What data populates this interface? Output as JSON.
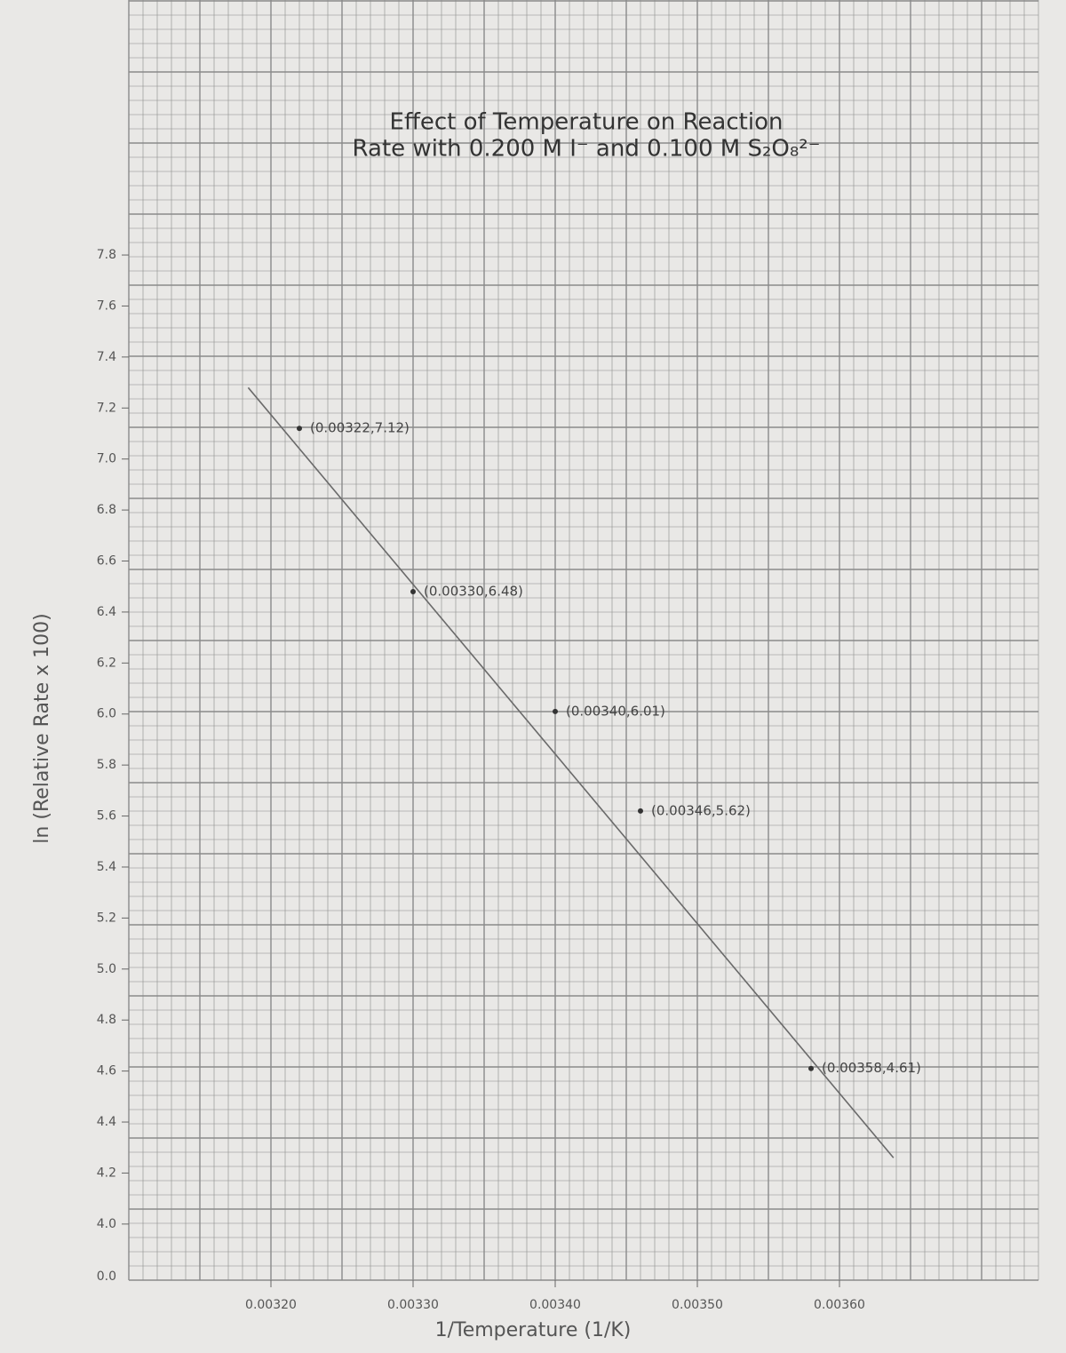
{
  "chart_data": {
    "type": "scatter",
    "title": [
      "Effect of Temperature on Reaction",
      "Rate with 0.200 M I⁻ and 0.100 M S₂O₈²⁻"
    ],
    "x_label": "1/Temperature (1/K)",
    "y_label": "ln (Relative Rate x 100)",
    "xlim": [
      0.0031,
      0.00374
    ],
    "ylim": [
      3.78,
      8.8
    ],
    "xticks": [
      {
        "value": 0.0032,
        "label": "0.00320"
      },
      {
        "value": 0.0033,
        "label": "0.00330"
      },
      {
        "value": 0.0034,
        "label": "0.00340"
      },
      {
        "value": 0.0035,
        "label": "0.00350"
      },
      {
        "value": 0.0036,
        "label": "0.00360"
      }
    ],
    "yticks": [
      {
        "value": 4.0,
        "label": "4.0"
      },
      4.2,
      4.4,
      4.6,
      4.8,
      {
        "value": 5.0,
        "label": "5.0"
      },
      5.2,
      5.4,
      5.6,
      5.8,
      {
        "value": 6.0,
        "label": "6.0"
      },
      6.2,
      6.4,
      6.6,
      6.8,
      {
        "value": 7.0,
        "label": "7.0"
      },
      7.2,
      7.4,
      7.6,
      7.8
    ],
    "y_break_label": "0.0",
    "series": [
      {
        "color": "#333333",
        "x": [
          0.00322,
          0.0033,
          0.0034,
          0.00346,
          0.00358
        ],
        "values": [
          7.12,
          6.48,
          6.01,
          5.62,
          4.61
        ],
        "value_labels": [
          "(0.00322,7.12)",
          "(0.00330,6.48)",
          "(0.00340,6.01)",
          "(0.00346,5.62)",
          "(0.00358,4.61)"
        ]
      }
    ],
    "trendline": {
      "x": [
        0.003184,
        0.003638
      ],
      "values": [
        7.28,
        4.26
      ],
      "color": "#6a6a6a"
    }
  }
}
